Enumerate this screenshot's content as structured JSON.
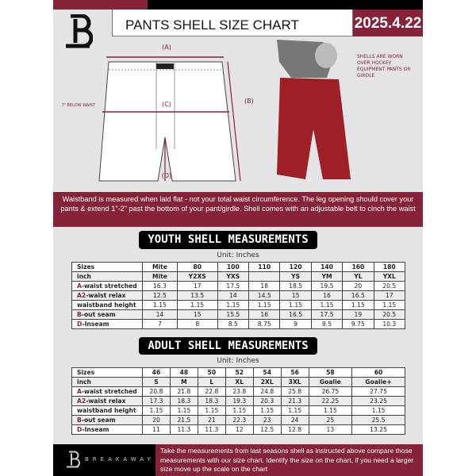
{
  "header": {
    "title": "PANTS SHELL SIZE CHART",
    "date": "2025.4.22"
  },
  "diagram": {
    "label_a": "(A)",
    "label_b": "(B)",
    "label_c": "(C)",
    "label_d": "(D)",
    "below_waist": "7\" BELOW WAIST"
  },
  "photo_note": "SHELLS ARE WORN OVER HOCKEY EQUIPMENT PANTS OR GIRDLE",
  "instructions": "Waistband is measured when laid flat - not your total waist circumference. The leg opening should cover your pants & extend 1\"-2\" past the bottom of your pant/girdle. Shell comes with an adjustable belt to cinch the waist",
  "youth": {
    "title": "YOUTH SHELL MEASUREMENTS",
    "unit": "Unit: Inches",
    "rows": [
      {
        "label": "Sizes",
        "values": [
          "Mite",
          "80",
          "100",
          "110",
          "120",
          "140",
          "160",
          "180"
        ]
      },
      {
        "label": "inch",
        "values": [
          "Mite",
          "Y2XS",
          "YXS",
          "",
          "YS",
          "YM",
          "YL",
          "YXL"
        ]
      },
      {
        "prefix": "A",
        "label": "-waist stretched",
        "values": [
          "16.3",
          "17",
          "17.5",
          "18",
          "18.5",
          "19.5",
          "20",
          "20.5"
        ]
      },
      {
        "prefix": "A2",
        "label": "-waist relax",
        "values": [
          "12.5",
          "13.5",
          "14",
          "14.5",
          "15",
          "16",
          "16.5",
          "17"
        ]
      },
      {
        "label": "waistband height",
        "values": [
          "1.15",
          "1.15",
          "1.15",
          "1.15",
          "1.15",
          "1.15",
          "1.15",
          "1.15"
        ]
      },
      {
        "prefix": "B",
        "label": "-out seam",
        "values": [
          "14",
          "15",
          "15.5",
          "16",
          "16.5",
          "17.5",
          "19",
          "20.5"
        ]
      },
      {
        "prefix": "D",
        "label": "-Inseam",
        "values": [
          "7",
          "8",
          "8.5",
          "8.75",
          "9",
          "9.5",
          "9.75",
          "10.3"
        ]
      }
    ]
  },
  "adult": {
    "title": "ADULT SHELL MEASUREMENTS",
    "unit": "Unit: Inches",
    "rows": [
      {
        "label": "Sizes",
        "values": [
          "46",
          "48",
          "50",
          "52",
          "54",
          "56",
          "58",
          "60"
        ]
      },
      {
        "label": "inch",
        "values": [
          "S",
          "M",
          "L",
          "XL",
          "2XL",
          "3XL",
          "Goalie",
          "Goalie+"
        ]
      },
      {
        "prefix": "A",
        "label": "-waist stretched",
        "values": [
          "20.8",
          "21.8",
          "22.8",
          "23.8",
          "24.8",
          "25.8",
          "26.75",
          "27.75"
        ]
      },
      {
        "prefix": "A2",
        "label": "-waist relax",
        "values": [
          "17.3",
          "18.3",
          "18.3",
          "19.3",
          "20.3",
          "21.3",
          "22.25",
          "23.25"
        ]
      },
      {
        "label": "waistband height",
        "values": [
          "1.15",
          "1.15",
          "1.15",
          "1.15",
          "1.15",
          "1.15",
          "1.15",
          "1.15"
        ]
      },
      {
        "prefix": "B",
        "label": "-out seam",
        "values": [
          "20",
          "21.5",
          "21",
          "22.3",
          "23",
          "24",
          "25",
          "25.5"
        ]
      },
      {
        "prefix": "D",
        "label": "-Inseam",
        "values": [
          "11",
          "11.3",
          "11.3",
          "12",
          "12.5",
          "12.8",
          "13",
          "13.25"
        ]
      }
    ]
  },
  "footer": {
    "brand": "BREAKAWAY",
    "text": "Take the measurements from last seasons shell as instructed above compare those measurements  with our size chart. Identify the size on the chart, if you need a larger size move up the scale on the chart"
  },
  "colors": {
    "accent": "#862338",
    "dark": "#000000",
    "background": "#e4e4e7"
  }
}
